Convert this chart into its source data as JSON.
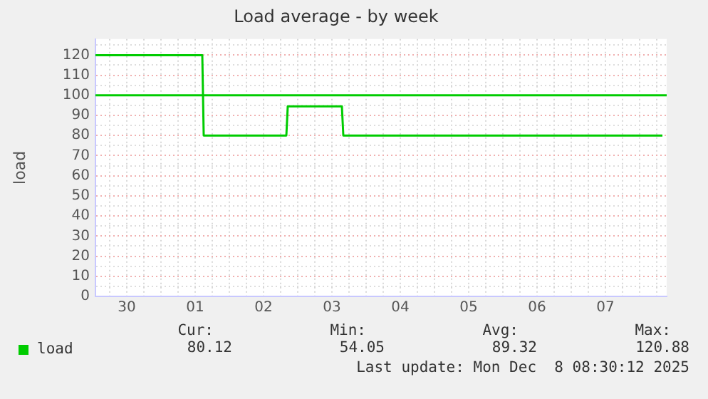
{
  "chart_data": {
    "type": "line",
    "title": "Load average - by week",
    "ylabel": "load",
    "series": [
      {
        "name": "load",
        "color": "#00cc00",
        "x": [
          "2025-11-30T01:00",
          "2025-12-01T14:30",
          "2025-12-01T15:00",
          "2025-12-02T20:00",
          "2025-12-02T20:30",
          "2025-12-03T15:30",
          "2025-12-03T16:00",
          "2025-12-08T08:00"
        ],
        "values": [
          120,
          120,
          80,
          80,
          94.5,
          94.5,
          80,
          80
        ]
      }
    ],
    "ref_lines": [
      {
        "axis": "y",
        "value": 100,
        "label": null,
        "color": "#00cc00"
      }
    ],
    "xlim": [
      "2025-11-30T01:00",
      "2025-12-08T09:30"
    ],
    "xticks": [
      {
        "value": "2025-11-30T06:00",
        "label": null
      },
      {
        "value": "2025-11-30T12:00",
        "label": "30"
      },
      {
        "value": "2025-11-30T18:00",
        "label": null
      },
      {
        "value": "2025-12-01T00:00",
        "label": null
      },
      {
        "value": "2025-12-01T06:00",
        "label": null
      },
      {
        "value": "2025-12-01T12:00",
        "label": "01"
      },
      {
        "value": "2025-12-01T18:00",
        "label": null
      },
      {
        "value": "2025-12-02T00:00",
        "label": null
      },
      {
        "value": "2025-12-02T06:00",
        "label": null
      },
      {
        "value": "2025-12-02T12:00",
        "label": "02"
      },
      {
        "value": "2025-12-02T18:00",
        "label": null
      },
      {
        "value": "2025-12-03T00:00",
        "label": null
      },
      {
        "value": "2025-12-03T06:00",
        "label": null
      },
      {
        "value": "2025-12-03T12:00",
        "label": "03"
      },
      {
        "value": "2025-12-03T18:00",
        "label": null
      },
      {
        "value": "2025-12-04T00:00",
        "label": null
      },
      {
        "value": "2025-12-04T06:00",
        "label": null
      },
      {
        "value": "2025-12-04T12:00",
        "label": "04"
      },
      {
        "value": "2025-12-04T18:00",
        "label": null
      },
      {
        "value": "2025-12-05T00:00",
        "label": null
      },
      {
        "value": "2025-12-05T06:00",
        "label": null
      },
      {
        "value": "2025-12-05T12:00",
        "label": "05"
      },
      {
        "value": "2025-12-05T18:00",
        "label": null
      },
      {
        "value": "2025-12-06T00:00",
        "label": null
      },
      {
        "value": "2025-12-06T06:00",
        "label": null
      },
      {
        "value": "2025-12-06T12:00",
        "label": "06"
      },
      {
        "value": "2025-12-06T18:00",
        "label": null
      },
      {
        "value": "2025-12-07T00:00",
        "label": null
      },
      {
        "value": "2025-12-07T06:00",
        "label": null
      },
      {
        "value": "2025-12-07T12:00",
        "label": "07"
      },
      {
        "value": "2025-12-07T18:00",
        "label": null
      },
      {
        "value": "2025-12-08T00:00",
        "label": null
      },
      {
        "value": "2025-12-08T06:00",
        "label": null
      }
    ],
    "ylim": [
      0,
      128
    ],
    "yticks": [
      0,
      {
        "value": 5,
        "label": null
      },
      10,
      {
        "value": 15,
        "label": null
      },
      20,
      {
        "value": 25,
        "label": null
      },
      30,
      {
        "value": 35,
        "label": null
      },
      40,
      {
        "value": 45,
        "label": null
      },
      50,
      {
        "value": 55,
        "label": null
      },
      60,
      {
        "value": 65,
        "label": null
      },
      70,
      {
        "value": 75,
        "label": null
      },
      80,
      {
        "value": 85,
        "label": null
      },
      90,
      {
        "value": 95,
        "label": null
      },
      100,
      {
        "value": 105,
        "label": null
      },
      110,
      {
        "value": 115,
        "label": null
      },
      120,
      {
        "value": 125,
        "label": null
      }
    ],
    "grid": true,
    "legend": "bottom left",
    "marker": "none",
    "line_style": "solid",
    "annotations": [
      "Cur:",
      "Min:",
      "Avg:",
      "Max:",
      "80.12",
      "54.05",
      "89.32",
      "120.88",
      "Last update: Mon Dec  8 08:30:12 2025"
    ]
  }
}
